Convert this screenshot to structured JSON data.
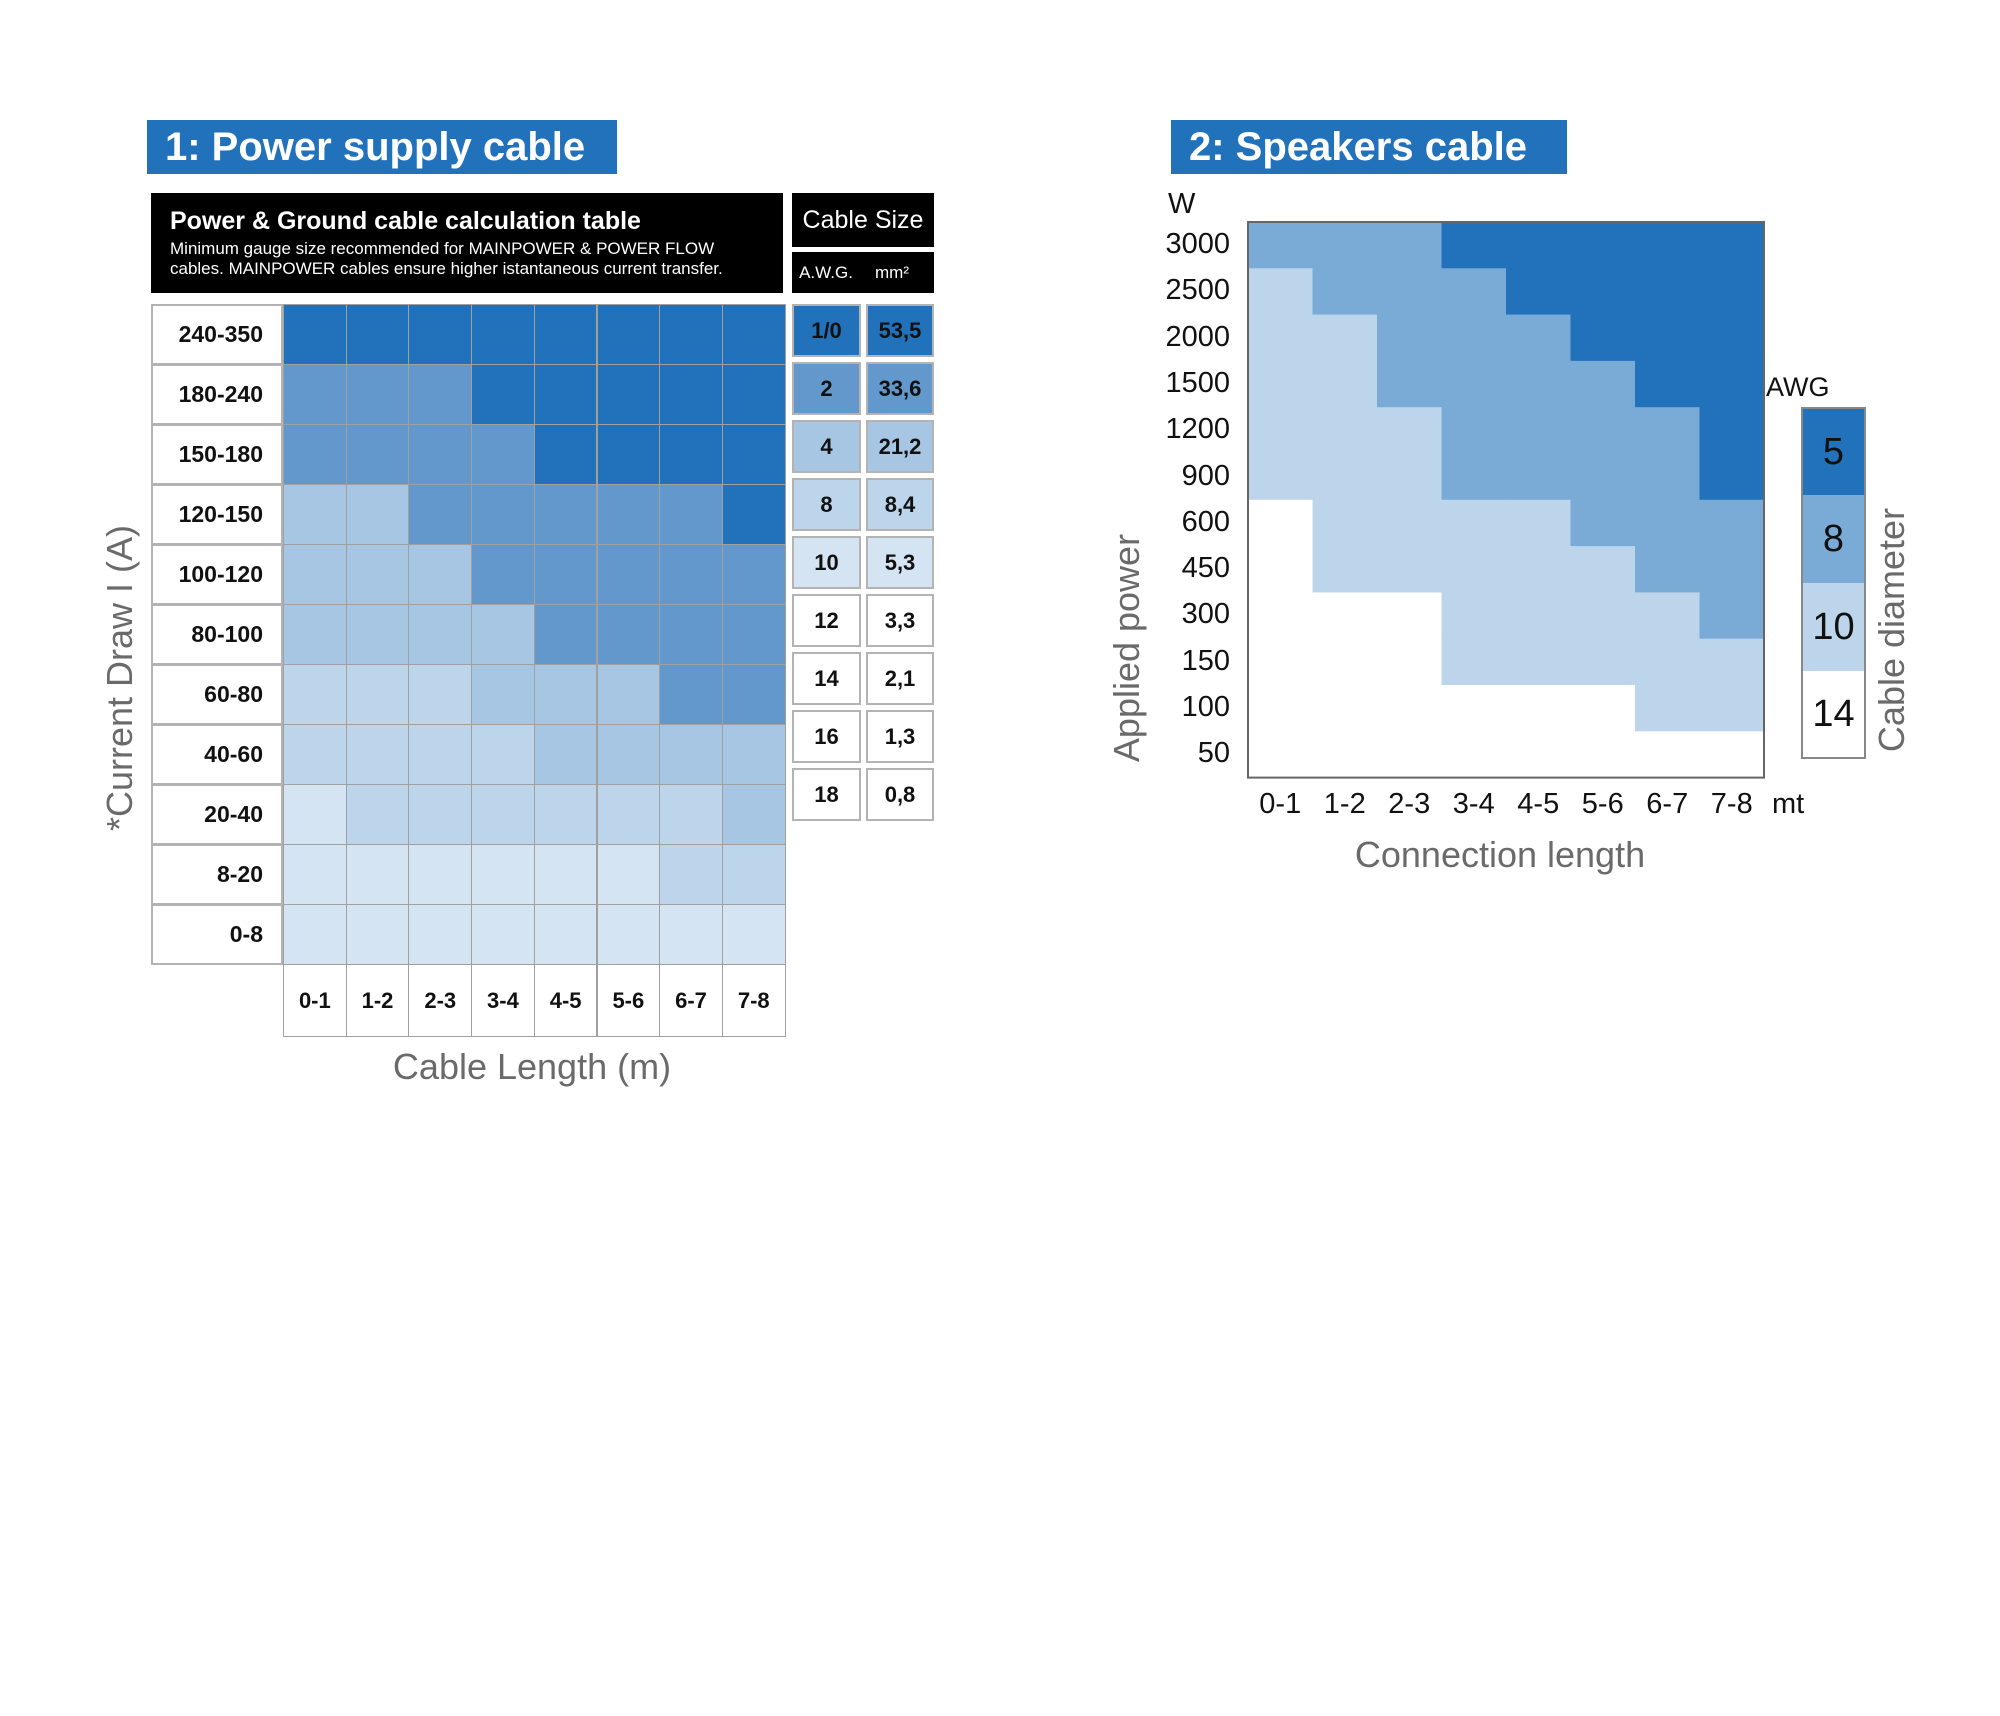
{
  "colors": {
    "brand_blue": "#2272bb",
    "title_text": "#ffffff",
    "axis_label_gray": "#6a6a6a",
    "level_1_0": "#2272bb",
    "level_2": "#6398cc",
    "level_4": "#6a9fd1",
    "level_8": "#a7c6e3",
    "level_10": "#bcd5ea",
    "level_12_white": "#ffffff",
    "level_light": "#d5e4f2"
  },
  "power_section": {
    "title": "1: Power supply cable",
    "header_title": "Power & Ground cable calculation table",
    "header_subtitle_line1": "Minimum gauge size recommended for MAINPOWER & POWER FLOW",
    "header_subtitle_line2": "cables. MAINPOWER cables ensure higher istantaneous current transfer.",
    "cable_size_header": "Cable Size",
    "awg_header": "A.W.G.",
    "mm2_header": "mm²",
    "y_axis_label": "*Current Draw I (A)",
    "x_axis_label": "Cable Length (m)"
  },
  "speakers_section": {
    "title": "2: Speakers cable",
    "y_unit": "W",
    "y_axis_label": "Applied power",
    "x_axis_label": "Connection length",
    "x_unit_suffix": "mt",
    "legend_title": "AWG",
    "legend_axis_label": "Cable diameter"
  },
  "chart_data": [
    {
      "type": "heatmap",
      "title": "1: Power supply cable",
      "subtitle": "Power & Ground cable calculation table",
      "xlabel": "Cable Length (m)",
      "ylabel": "*Current Draw I (A)",
      "x_categories": [
        "0-1",
        "1-2",
        "2-3",
        "3-4",
        "4-5",
        "5-6",
        "6-7",
        "7-8"
      ],
      "y_categories": [
        "240-350",
        "180-240",
        "150-180",
        "120-150",
        "100-120",
        "80-100",
        "60-80",
        "40-60",
        "20-40",
        "8-20",
        "0-8"
      ],
      "cell_colors": [
        [
          "#2272bb",
          "#2272bb",
          "#2272bb",
          "#2272bb",
          "#2272bb",
          "#2272bb",
          "#2272bb",
          "#2272bb"
        ],
        [
          "#6398cc",
          "#6398cc",
          "#6398cc",
          "#2272bb",
          "#2272bb",
          "#2272bb",
          "#2272bb",
          "#2272bb"
        ],
        [
          "#6398cc",
          "#6398cc",
          "#6398cc",
          "#6398cc",
          "#2272bb",
          "#2272bb",
          "#2272bb",
          "#2272bb"
        ],
        [
          "#a7c6e3",
          "#a7c6e3",
          "#6398cc",
          "#6398cc",
          "#6398cc",
          "#6398cc",
          "#6398cc",
          "#2272bb"
        ],
        [
          "#a7c6e3",
          "#a7c6e3",
          "#a7c6e3",
          "#6398cc",
          "#6398cc",
          "#6398cc",
          "#6398cc",
          "#6398cc"
        ],
        [
          "#a7c6e3",
          "#a7c6e3",
          "#a7c6e3",
          "#a7c6e3",
          "#6398cc",
          "#6398cc",
          "#6398cc",
          "#6398cc"
        ],
        [
          "#bcd5ea",
          "#bcd5ea",
          "#bcd5ea",
          "#a7c6e3",
          "#a7c6e3",
          "#a7c6e3",
          "#6398cc",
          "#6398cc"
        ],
        [
          "#bcd5ea",
          "#bcd5ea",
          "#bcd5ea",
          "#bcd5ea",
          "#a7c6e3",
          "#a7c6e3",
          "#a7c6e3",
          "#a7c6e3"
        ],
        [
          "#d5e4f2",
          "#bcd5ea",
          "#bcd5ea",
          "#bcd5ea",
          "#bcd5ea",
          "#bcd5ea",
          "#bcd5ea",
          "#a7c6e3"
        ],
        [
          "#d5e4f2",
          "#d5e4f2",
          "#d5e4f2",
          "#d5e4f2",
          "#d5e4f2",
          "#d5e4f2",
          "#bcd5ea",
          "#bcd5ea"
        ],
        [
          "#d5e4f2",
          "#d5e4f2",
          "#d5e4f2",
          "#d5e4f2",
          "#d5e4f2",
          "#d5e4f2",
          "#d5e4f2",
          "#d5e4f2"
        ]
      ],
      "cable_sizes": [
        {
          "awg": "1/0",
          "mm2": "53,5",
          "color": "#2272bb"
        },
        {
          "awg": "2",
          "mm2": "33,6",
          "color": "#6398cc"
        },
        {
          "awg": "4",
          "mm2": "21,2",
          "color": "#a7c6e3"
        },
        {
          "awg": "8",
          "mm2": "8,4",
          "color": "#bcd5ea"
        },
        {
          "awg": "10",
          "mm2": "5,3",
          "color": "#d5e4f2"
        },
        {
          "awg": "12",
          "mm2": "3,3",
          "color": "#ffffff"
        },
        {
          "awg": "14",
          "mm2": "2,1",
          "color": "#ffffff"
        },
        {
          "awg": "16",
          "mm2": "1,3",
          "color": "#ffffff"
        },
        {
          "awg": "18",
          "mm2": "0,8",
          "color": "#ffffff"
        }
      ]
    },
    {
      "type": "heatmap",
      "title": "2: Speakers cable",
      "xlabel": "Connection length",
      "ylabel": "Applied power",
      "y_unit": "W",
      "x_categories": [
        "0-1",
        "1-2",
        "2-3",
        "3-4",
        "4-5",
        "5-6",
        "6-7",
        "7-8"
      ],
      "y_categories": [
        "3000",
        "2500",
        "2000",
        "1500",
        "1200",
        "900",
        "600",
        "450",
        "300",
        "150",
        "100",
        "50"
      ],
      "awg_levels": [
        5,
        8,
        10,
        14
      ],
      "awg_grid": [
        [
          8,
          8,
          8,
          5,
          5,
          5,
          5,
          5
        ],
        [
          10,
          8,
          8,
          8,
          5,
          5,
          5,
          5
        ],
        [
          10,
          10,
          8,
          8,
          8,
          5,
          5,
          5
        ],
        [
          10,
          10,
          8,
          8,
          8,
          8,
          5,
          5
        ],
        [
          10,
          10,
          10,
          8,
          8,
          8,
          8,
          5
        ],
        [
          10,
          10,
          10,
          8,
          8,
          8,
          8,
          5
        ],
        [
          14,
          10,
          10,
          10,
          10,
          8,
          8,
          8
        ],
        [
          14,
          10,
          10,
          10,
          10,
          10,
          8,
          8
        ],
        [
          14,
          14,
          14,
          10,
          10,
          10,
          10,
          8
        ],
        [
          14,
          14,
          14,
          10,
          10,
          10,
          10,
          10
        ],
        [
          14,
          14,
          14,
          14,
          14,
          14,
          10,
          10
        ],
        [
          14,
          14,
          14,
          14,
          14,
          14,
          14,
          14
        ]
      ],
      "legend": [
        {
          "awg": "5",
          "color": "#2272bb"
        },
        {
          "awg": "8",
          "color": "#7aabd6"
        },
        {
          "awg": "10",
          "color": "#bcd5ea"
        },
        {
          "awg": "14",
          "color": "#ffffff"
        }
      ]
    }
  ]
}
